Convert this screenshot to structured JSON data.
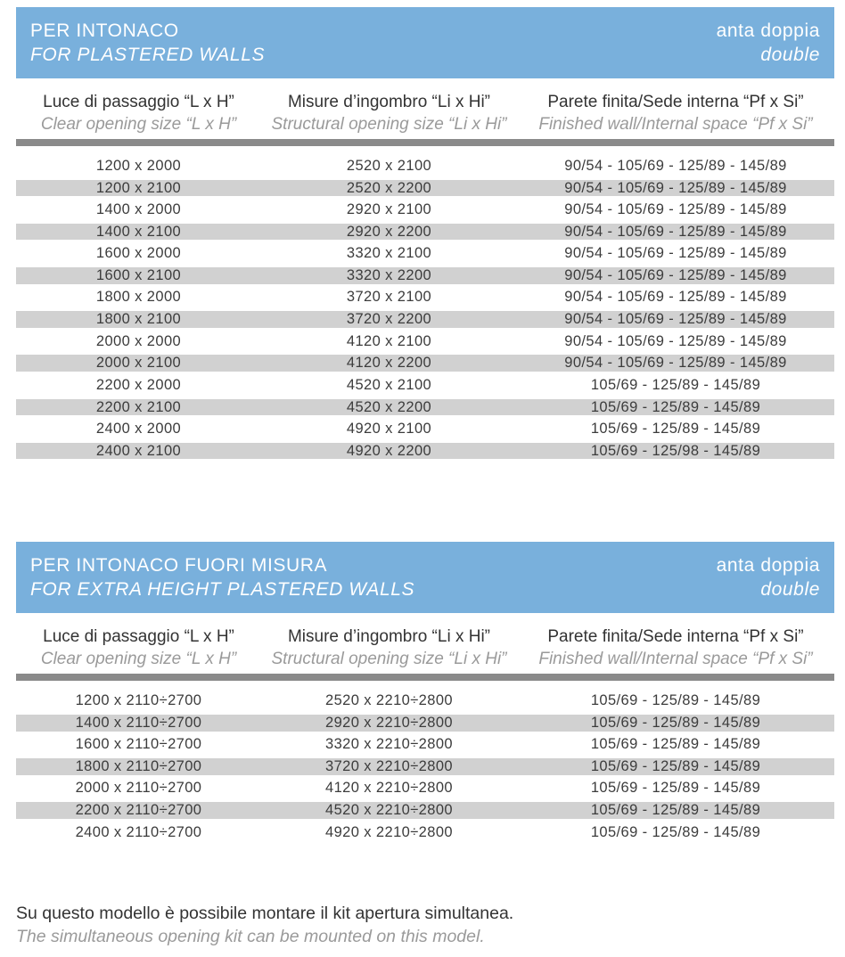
{
  "colors": {
    "header_blue": "#79B0DC",
    "row_alt": "#D1D1D1",
    "divider_gray": "#8A8A8A",
    "text_dark": "#3C3C3C",
    "text_muted": "#9A9A9A"
  },
  "tables": [
    {
      "title": {
        "it": "PER INTONACO",
        "en": "FOR PLASTERED WALLS"
      },
      "variant": {
        "it": "anta doppia",
        "en": "double"
      },
      "columns": [
        {
          "it": "Luce di passaggio “L x H”",
          "en": "Clear opening size “L x H”"
        },
        {
          "it": "Misure d’ingombro “Li x Hi”",
          "en": "Structural opening size “Li x Hi”"
        },
        {
          "it": "Parete finita/Sede interna “Pf x Si”",
          "en": "Finished wall/Internal space “Pf x Si”"
        }
      ],
      "rows": [
        [
          "1200 x 2000",
          "2520 x 2100",
          "90/54 - 105/69 - 125/89 - 145/89"
        ],
        [
          "1200 x 2100",
          "2520 x 2200",
          "90/54 - 105/69 - 125/89 - 145/89"
        ],
        [
          "1400 x 2000",
          "2920 x 2100",
          "90/54 - 105/69 - 125/89 - 145/89"
        ],
        [
          "1400 x 2100",
          "2920 x 2200",
          "90/54 - 105/69 - 125/89 - 145/89"
        ],
        [
          "1600 x 2000",
          "3320 x 2100",
          "90/54 - 105/69 - 125/89 - 145/89"
        ],
        [
          "1600 x 2100",
          "3320 x 2200",
          "90/54 - 105/69 - 125/89 - 145/89"
        ],
        [
          "1800 x 2000",
          "3720 x 2100",
          "90/54 - 105/69 - 125/89 - 145/89"
        ],
        [
          "1800 x 2100",
          "3720 x 2200",
          "90/54 - 105/69 - 125/89 - 145/89"
        ],
        [
          "2000 x 2000",
          "4120 x 2100",
          "90/54 - 105/69 - 125/89 - 145/89"
        ],
        [
          "2000 x 2100",
          "4120 x 2200",
          "90/54 - 105/69 - 125/89 - 145/89"
        ],
        [
          "2200 x 2000",
          "4520 x 2100",
          "105/69 - 125/89 - 145/89"
        ],
        [
          "2200 x 2100",
          "4520 x 2200",
          "105/69 - 125/89 - 145/89"
        ],
        [
          "2400 x 2000",
          "4920 x 2100",
          "105/69 - 125/89 - 145/89"
        ],
        [
          "2400 x 2100",
          "4920 x 2200",
          "105/69 - 125/98 - 145/89"
        ]
      ]
    },
    {
      "title": {
        "it": "PER INTONACO FUORI MISURA",
        "en": "FOR EXTRA HEIGHT PLASTERED WALLS"
      },
      "variant": {
        "it": "anta doppia",
        "en": "double"
      },
      "columns": [
        {
          "it": "Luce di passaggio “L x H”",
          "en": "Clear opening size “L x H”"
        },
        {
          "it": "Misure d’ingombro “Li x Hi”",
          "en": "Structural opening size “Li x Hi”"
        },
        {
          "it": "Parete finita/Sede interna “Pf x Si”",
          "en": "Finished wall/Internal space “Pf x Si”"
        }
      ],
      "rows": [
        [
          "1200 x 2110÷2700",
          "2520 x 2210÷2800",
          "105/69 - 125/89 - 145/89"
        ],
        [
          "1400 x 2110÷2700",
          "2920 x 2210÷2800",
          "105/69 - 125/89 - 145/89"
        ],
        [
          "1600 x 2110÷2700",
          "3320 x 2210÷2800",
          "105/69 - 125/89 - 145/89"
        ],
        [
          "1800 x 2110÷2700",
          "3720 x 2210÷2800",
          "105/69 - 125/89 - 145/89"
        ],
        [
          "2000 x 2110÷2700",
          "4120 x 2210÷2800",
          "105/69 - 125/89 - 145/89"
        ],
        [
          "2200 x 2110÷2700",
          "4520 x 2210÷2800",
          "105/69 - 125/89 - 145/89"
        ],
        [
          "2400 x 2110÷2700",
          "4920 x 2210÷2800",
          "105/69 - 125/89 - 145/89"
        ]
      ]
    }
  ],
  "footer": {
    "it": "Su questo modello è possibile montare il kit apertura simultanea.",
    "en": "The simultaneous opening kit can be mounted on this model."
  }
}
